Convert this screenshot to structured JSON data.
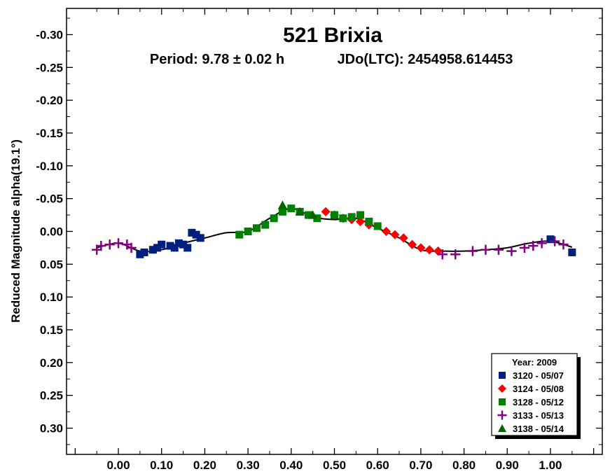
{
  "chart_data": {
    "type": "scatter",
    "title": "521 Brixia",
    "subtitle_period": "Period: 9.78 ± 0.02 h",
    "subtitle_epoch": "JDo(LTC): 2454958.614453",
    "ylabel": "Reduced Magnitude alpha(19.1°)",
    "xlabel": "",
    "xlim": [
      -0.12,
      1.12
    ],
    "ylim": [
      -0.34,
      0.34
    ],
    "y_inverted": true,
    "grid": false,
    "x_ticks": [
      "0.00",
      "0.10",
      "0.20",
      "0.30",
      "0.40",
      "0.50",
      "0.60",
      "0.70",
      "0.80",
      "0.90",
      "1.00"
    ],
    "y_ticks": [
      "-0.30",
      "-0.25",
      "-0.20",
      "-0.15",
      "-0.10",
      "-0.05",
      "0.00",
      "0.05",
      "0.10",
      "0.15",
      "0.20",
      "0.25",
      "0.30"
    ],
    "legend": {
      "title": "Year: 2009",
      "placement": "bottom-right",
      "entries": [
        {
          "label": "3120 - 05/07",
          "marker": "square",
          "color": "#001f7f"
        },
        {
          "label": "3124 - 05/08",
          "marker": "diamond",
          "color": "#ff0000"
        },
        {
          "label": "3128 - 05/12",
          "marker": "square",
          "color": "#008000"
        },
        {
          "label": "3133 - 05/13",
          "marker": "plus",
          "color": "#800080"
        },
        {
          "label": "3138 - 05/14",
          "marker": "triangle",
          "color": "#006400"
        }
      ]
    },
    "fit_curve": {
      "x": [
        -0.05,
        0.0,
        0.05,
        0.1,
        0.15,
        0.2,
        0.25,
        0.3,
        0.35,
        0.4,
        0.45,
        0.5,
        0.55,
        0.6,
        0.65,
        0.7,
        0.75,
        0.8,
        0.85,
        0.9,
        0.95,
        1.0,
        1.05
      ],
      "y": [
        0.025,
        0.018,
        0.03,
        0.028,
        0.018,
        0.01,
        0.002,
        0.0,
        -0.02,
        -0.035,
        -0.022,
        -0.018,
        -0.02,
        -0.005,
        0.01,
        0.028,
        0.03,
        0.03,
        0.028,
        0.025,
        0.018,
        0.015,
        0.024
      ]
    },
    "series": [
      {
        "name": "3120 - 05/07",
        "x": [
          0.05,
          0.06,
          0.08,
          0.09,
          0.1,
          0.12,
          0.13,
          0.14,
          0.15,
          0.16,
          0.17,
          0.18,
          0.19,
          1.0,
          1.05
        ],
        "y": [
          0.035,
          0.032,
          0.028,
          0.025,
          0.02,
          0.022,
          0.025,
          0.018,
          0.02,
          0.025,
          0.002,
          0.005,
          0.01,
          0.012,
          0.032
        ]
      },
      {
        "name": "3124 - 05/08",
        "x": [
          0.48,
          0.5,
          0.52,
          0.54,
          0.56,
          0.58,
          0.62,
          0.64,
          0.66,
          0.68,
          0.7,
          0.72,
          0.74
        ],
        "y": [
          -0.03,
          -0.025,
          -0.02,
          -0.018,
          -0.015,
          -0.01,
          0.0,
          0.005,
          0.01,
          0.02,
          0.025,
          0.028,
          0.03
        ]
      },
      {
        "name": "3128 - 05/12",
        "x": [
          0.28,
          0.3,
          0.32,
          0.34,
          0.36,
          0.38,
          0.4,
          0.42,
          0.44,
          0.46,
          0.5,
          0.52,
          0.54,
          0.56,
          0.58,
          0.6
        ],
        "y": [
          0.005,
          0.0,
          -0.005,
          -0.01,
          -0.02,
          -0.03,
          -0.035,
          -0.03,
          -0.025,
          -0.02,
          -0.025,
          -0.02,
          -0.022,
          -0.025,
          -0.015,
          -0.008
        ]
      },
      {
        "name": "3133 - 05/13",
        "x": [
          -0.05,
          -0.04,
          -0.02,
          0.0,
          0.02,
          0.03,
          0.75,
          0.78,
          0.82,
          0.85,
          0.88,
          0.91,
          0.94,
          0.96,
          0.98,
          1.01,
          1.03
        ],
        "y": [
          0.028,
          0.022,
          0.02,
          0.018,
          0.02,
          0.025,
          0.035,
          0.035,
          0.03,
          0.028,
          0.028,
          0.03,
          0.025,
          0.022,
          0.018,
          0.015,
          0.02
        ]
      },
      {
        "name": "3138 - 05/14",
        "x": [
          0.38,
          0.42,
          0.45
        ],
        "y": [
          -0.04,
          -0.03,
          -0.025
        ]
      }
    ]
  }
}
